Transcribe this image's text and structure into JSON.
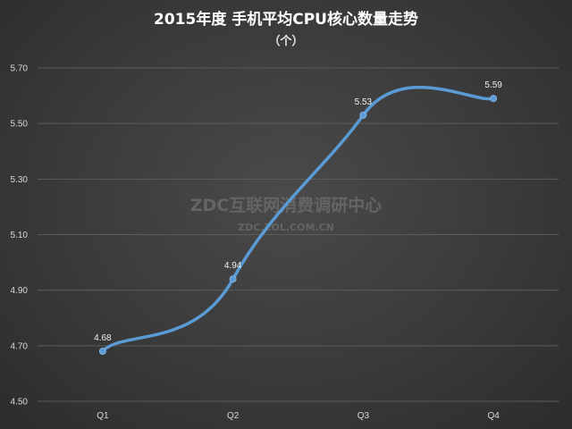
{
  "chart_data": {
    "type": "line",
    "title": "2015年度 手机平均CPU核心数量走势",
    "subtitle": "（个）",
    "categories": [
      "Q1",
      "Q2",
      "Q3",
      "Q4"
    ],
    "series": [
      {
        "values": [
          4.68,
          4.94,
          5.53,
          5.59
        ],
        "color": "#5b9bd5"
      }
    ],
    "data_labels": [
      "4.68",
      "4.94",
      "5.53",
      "5.59"
    ],
    "ylim": [
      4.5,
      5.7
    ],
    "yticks": [
      "4.50",
      "4.70",
      "4.90",
      "5.10",
      "5.30",
      "5.50",
      "5.70"
    ],
    "grid": true,
    "smooth": true,
    "watermark": {
      "line1": "ZDC互联网消费调研中心",
      "line2": "ZDC.ZOL.COM.CN"
    }
  }
}
